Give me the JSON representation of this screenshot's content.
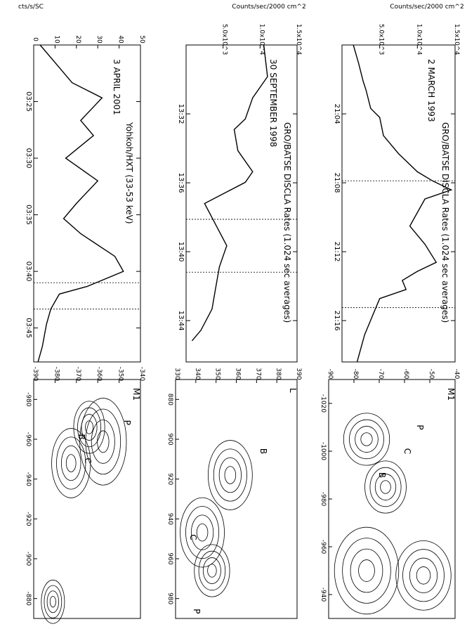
{
  "chart_data": [
    {
      "type": "line",
      "title": "GRO/BATSE DISCLA Rates (1.024 sec averages)",
      "annotation": "2 MARCH 1993",
      "ylabel": "Counts/sec/2000 cm^2",
      "x_ticks": [
        "21:04",
        "21:08",
        "21:12",
        "21:16"
      ],
      "y_ticks": [
        "5.0x10^3",
        "1.0x10^4",
        "1.5x10^4"
      ],
      "xlim": [
        21.0,
        21.35
      ],
      "ylim": [
        0,
        15000
      ],
      "x": [
        21.0,
        21.02,
        21.04,
        21.05,
        21.07,
        21.08,
        21.1,
        21.12,
        21.14,
        21.15,
        21.16,
        21.17,
        21.2,
        21.22,
        21.24,
        21.25,
        21.26,
        21.27,
        21.28,
        21.3,
        21.32,
        21.35
      ],
      "values": [
        1500,
        2200,
        2800,
        3200,
        3800,
        5000,
        5500,
        7500,
        10000,
        12000,
        14500,
        11000,
        9000,
        11000,
        12500,
        10000,
        8000,
        8500,
        5000,
        4000,
        3000,
        2000
      ],
      "markers": [
        21.15,
        21.29
      ]
    },
    {
      "type": "line",
      "title": "GRO/BATSE DISCLA Rates (1.024 sec averages)",
      "annotation": "30 SEPTEMBER 1998",
      "ylabel": "Counts/sec/2000 cm^2",
      "x_ticks": [
        "13:32",
        "13:36",
        "13:40",
        "13:44"
      ],
      "y_ticks": [
        "5.0x10^3",
        "1.0x10^4",
        "1.5x10^4"
      ],
      "xlim": [
        13.45,
        13.75
      ],
      "ylim": [
        0,
        15000
      ],
      "x": [
        13.45,
        13.48,
        13.5,
        13.52,
        13.53,
        13.55,
        13.57,
        13.58,
        13.6,
        13.62,
        13.64,
        13.66,
        13.68,
        13.7,
        13.72,
        13.73
      ],
      "values": [
        10500,
        11000,
        9000,
        8000,
        6500,
        7000,
        9000,
        8000,
        2500,
        4000,
        5500,
        4500,
        4000,
        3500,
        2000,
        800
      ],
      "markers": [
        13.615,
        13.665
      ]
    },
    {
      "type": "line",
      "title": "Yohkoh/HXT (33-53 keV)",
      "annotation": "3 APRIL 2001",
      "ylabel": "cts/s/SC",
      "x_ticks": [
        "03:25",
        "03:30",
        "03:35",
        "03:40",
        "03:45"
      ],
      "y_ticks": [
        "0",
        "10",
        "20",
        "30",
        "40",
        "50"
      ],
      "xlim": [
        3.35,
        3.77
      ],
      "ylim": [
        0,
        50
      ],
      "x": [
        3.35,
        3.38,
        3.4,
        3.42,
        3.45,
        3.47,
        3.5,
        3.53,
        3.56,
        3.58,
        3.6,
        3.63,
        3.65,
        3.67,
        3.68,
        3.7,
        3.72,
        3.75,
        3.77
      ],
      "values": [
        3,
        12,
        18,
        32,
        22,
        28,
        15,
        30,
        20,
        14,
        22,
        38,
        42,
        25,
        12,
        8,
        6,
        4,
        2
      ],
      "markers": [
        3.665,
        3.7
      ]
    },
    {
      "type": "line",
      "title": "",
      "panel_label": "M1",
      "x_ticks": [
        "-1020",
        "-1000",
        "-980",
        "-960",
        "-940"
      ],
      "y_ticks": [
        "-90",
        "-80",
        "-70",
        "-60",
        "-50",
        "-40"
      ],
      "annotations": [
        "P",
        "C",
        "B"
      ]
    },
    {
      "type": "line",
      "title": "",
      "panel_label": "L",
      "x_ticks": [
        "880",
        "900",
        "920",
        "940",
        "960",
        "980"
      ],
      "y_ticks": [
        "330",
        "340",
        "350",
        "360",
        "370",
        "380",
        "390"
      ],
      "annotations": [
        "B",
        "C",
        "P"
      ]
    },
    {
      "type": "line",
      "title": "",
      "panel_label": "M1",
      "x_ticks": [
        "-980",
        "-960",
        "-940",
        "-920",
        "-900",
        "-880"
      ],
      "y_ticks": [
        "-390",
        "-380",
        "-370",
        "-360",
        "-350",
        "-340"
      ],
      "annotations": [
        "P",
        "C",
        "B"
      ]
    }
  ]
}
